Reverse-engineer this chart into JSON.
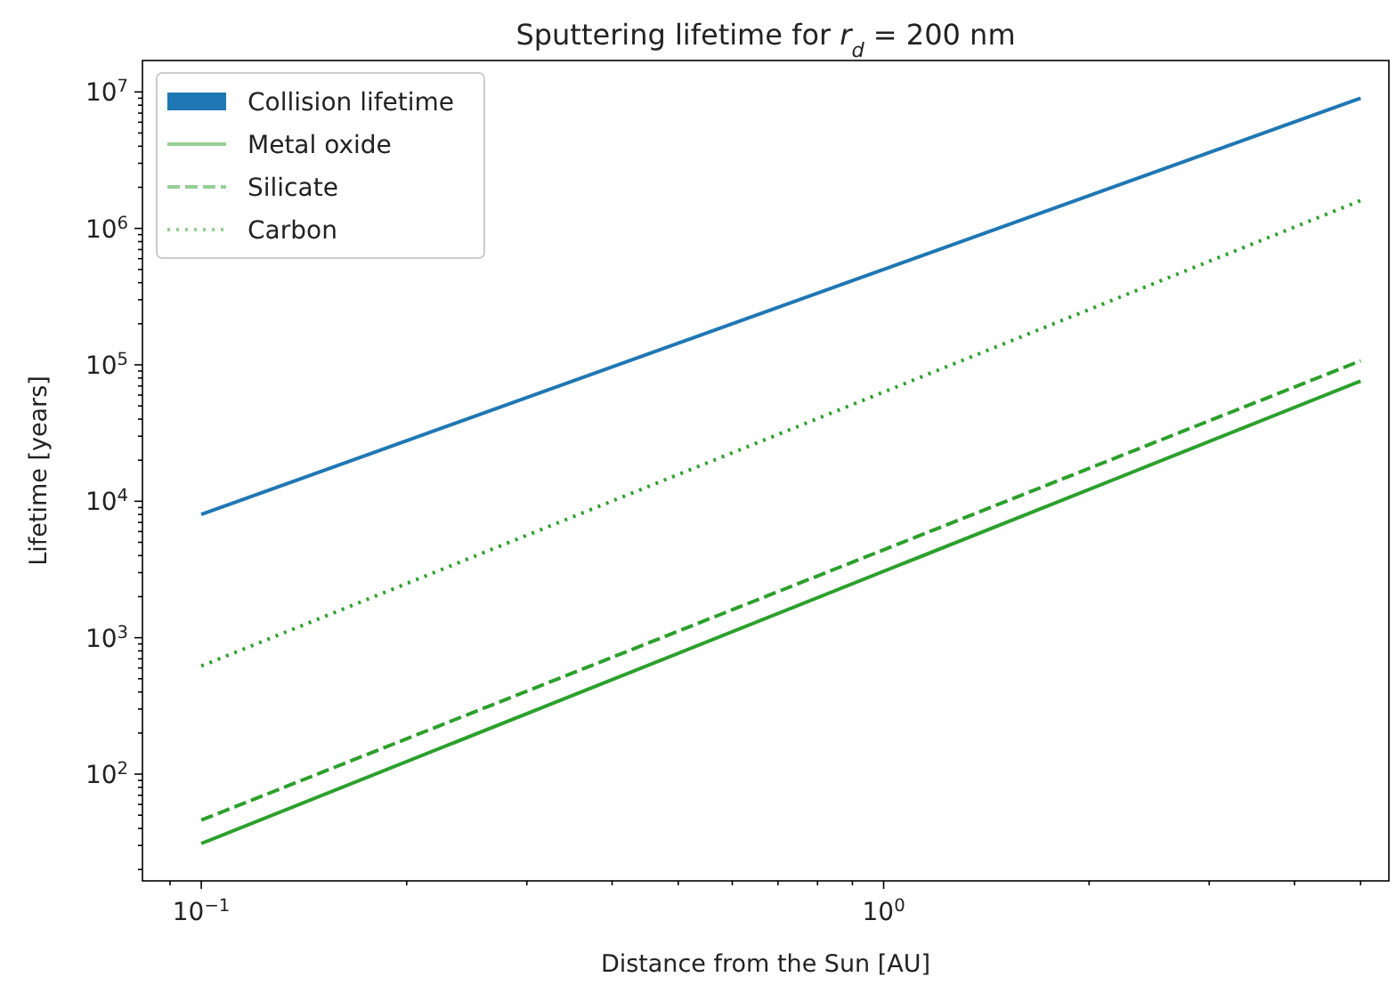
{
  "chart_data": {
    "type": "line",
    "title": "Sputtering lifetime for r$_{d}$ =  200 nm",
    "xlabel": "Distance from the Sun [AU]",
    "ylabel": "Lifetime [years]",
    "log": "xy",
    "legend": "top left",
    "x": [
      0.1,
      5
    ],
    "series": [
      {
        "name": "Collision lifetime",
        "color": "#1f77b4",
        "values": [
          8000,
          9000000
        ],
        "line_style": "solid"
      },
      {
        "name": "Metal oxide",
        "color": "#2ca02c",
        "values": [
          31,
          76000
        ],
        "line_style": "solid"
      },
      {
        "name": "Silicate",
        "color": "#2ca02c",
        "values": [
          46,
          107000
        ],
        "line_style": "dashed"
      },
      {
        "name": "Carbon",
        "color": "#2ca02c",
        "values": [
          620,
          1600000
        ],
        "line_style": "dotted"
      }
    ],
    "xlim": [
      0.082,
      5.5
    ],
    "ylim": [
      16.5,
      17000000
    ],
    "xticks": [
      {
        "value": 0.1,
        "label": "10$^{−1}$"
      },
      {
        "value": 1,
        "label": "10$^{0}$"
      },
      {
        "value": 0.09,
        "label": null
      },
      {
        "value": 0.2,
        "label": null
      },
      {
        "value": 0.3,
        "label": null
      },
      {
        "value": 0.4,
        "label": null
      },
      {
        "value": 0.5,
        "label": null
      },
      {
        "value": 0.6,
        "label": null
      },
      {
        "value": 0.7,
        "label": null
      },
      {
        "value": 0.8,
        "label": null
      },
      {
        "value": 0.9,
        "label": null
      },
      {
        "value": 2,
        "label": null
      },
      {
        "value": 3,
        "label": null
      },
      {
        "value": 4,
        "label": null
      },
      {
        "value": 5,
        "label": null
      }
    ],
    "yticks": [
      {
        "value": 100,
        "label": "10$^{2}$"
      },
      {
        "value": 1000,
        "label": "10$^{3}$"
      },
      {
        "value": 10000,
        "label": "10$^{4}$"
      },
      {
        "value": 100000,
        "label": "10$^{5}$"
      },
      {
        "value": 1000000,
        "label": "10$^{6}$"
      },
      {
        "value": 10000000,
        "label": "10$^{7}$"
      },
      {
        "value": 20,
        "label": null
      },
      {
        "value": 30,
        "label": null
      },
      {
        "value": 40,
        "label": null
      },
      {
        "value": 50,
        "label": null
      },
      {
        "value": 60,
        "label": null
      },
      {
        "value": 70,
        "label": null
      },
      {
        "value": 80,
        "label": null
      },
      {
        "value": 90,
        "label": null
      },
      {
        "value": 200,
        "label": null
      },
      {
        "value": 300,
        "label": null
      },
      {
        "value": 400,
        "label": null
      },
      {
        "value": 500,
        "label": null
      },
      {
        "value": 600,
        "label": null
      },
      {
        "value": 700,
        "label": null
      },
      {
        "value": 800,
        "label": null
      },
      {
        "value": 900,
        "label": null
      },
      {
        "value": 2000,
        "label": null
      },
      {
        "value": 3000,
        "label": null
      },
      {
        "value": 4000,
        "label": null
      },
      {
        "value": 5000,
        "label": null
      },
      {
        "value": 6000,
        "label": null
      },
      {
        "value": 7000,
        "label": null
      },
      {
        "value": 8000,
        "label": null
      },
      {
        "value": 9000,
        "label": null
      },
      {
        "value": 20000,
        "label": null
      },
      {
        "value": 30000,
        "label": null
      },
      {
        "value": 40000,
        "label": null
      },
      {
        "value": 50000,
        "label": null
      },
      {
        "value": 60000,
        "label": null
      },
      {
        "value": 70000,
        "label": null
      },
      {
        "value": 80000,
        "label": null
      },
      {
        "value": 90000,
        "label": null
      },
      {
        "value": 200000,
        "label": null
      },
      {
        "value": 300000,
        "label": null
      },
      {
        "value": 400000,
        "label": null
      },
      {
        "value": 500000,
        "label": null
      },
      {
        "value": 600000,
        "label": null
      },
      {
        "value": 700000,
        "label": null
      },
      {
        "value": 800000,
        "label": null
      },
      {
        "value": 900000,
        "label": null
      },
      {
        "value": 2000000,
        "label": null
      },
      {
        "value": 3000000,
        "label": null
      },
      {
        "value": 4000000,
        "label": null
      },
      {
        "value": 5000000,
        "label": null
      },
      {
        "value": 6000000,
        "label": null
      },
      {
        "value": 7000000,
        "label": null
      },
      {
        "value": 8000000,
        "label": null
      },
      {
        "value": 9000000,
        "label": null
      }
    ]
  }
}
